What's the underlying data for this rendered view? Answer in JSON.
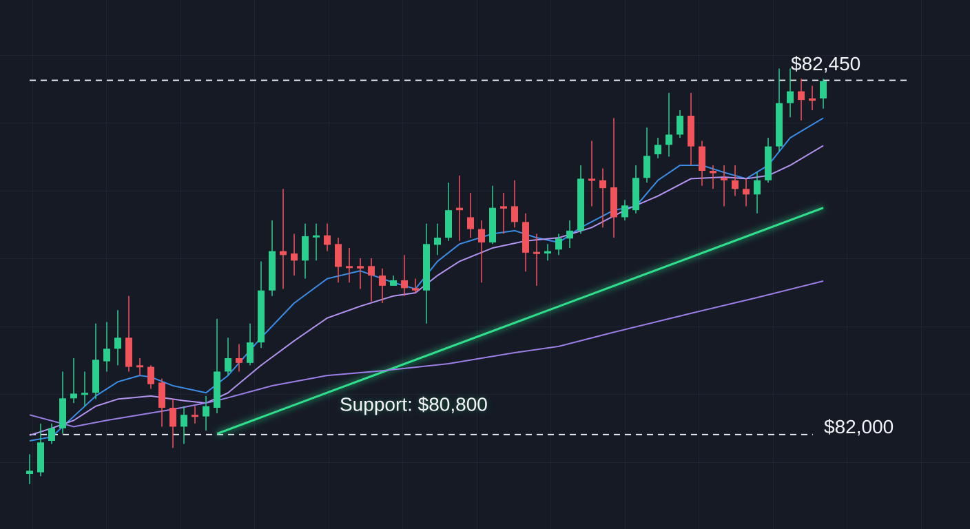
{
  "chart_data": {
    "type": "candlestick",
    "up_color": "#2bcf8e",
    "down_color": "#f2545b",
    "ylim": [
      81880,
      82552
    ],
    "open": [
      81950,
      81952,
      81992,
      82008,
      82046,
      82052,
      82053,
      82093,
      82109,
      82123,
      82088,
      82086,
      82066,
      82034,
      82010,
      82025,
      82023,
      82034,
      82080,
      82097,
      82091,
      82117,
      82183,
      82233,
      82230,
      82221,
      82252,
      82253,
      82242,
      82214,
      82214,
      82214,
      82202,
      82189,
      82196,
      82186,
      82183,
      82241,
      82250,
      82288,
      82276,
      82261,
      82244,
      82290,
      82290,
      82270,
      82232,
      82230,
      82235,
      82249,
      82259,
      82325,
      82323,
      82314,
      82276,
      82285,
      82326,
      82356,
      82368,
      82381,
      82405,
      82366,
      82335,
      82326,
      82323,
      82312,
      82305,
      82323,
      82366,
      82421,
      82436,
      82427,
      82427
    ],
    "high": [
      81975,
      82014,
      82014,
      82080,
      82097,
      82080,
      82141,
      82143,
      82158,
      82176,
      82097,
      82088,
      82071,
      82045,
      82036,
      82036,
      82049,
      82147,
      82123,
      82115,
      82141,
      82220,
      82272,
      82312,
      82255,
      82268,
      82268,
      82268,
      82250,
      82237,
      82224,
      82224,
      82211,
      82202,
      82228,
      82198,
      82268,
      82268,
      82320,
      82329,
      82307,
      82272,
      82316,
      82307,
      82323,
      82281,
      82255,
      82242,
      82255,
      82272,
      82342,
      82373,
      82338,
      82402,
      82298,
      82342,
      82390,
      82377,
      82434,
      82412,
      82434,
      82373,
      82342,
      82342,
      82342,
      82325,
      82333,
      82377,
      82465,
      82465,
      82452,
      82443,
      82452
    ],
    "low": [
      81937,
      81947,
      81988,
      82001,
      82040,
      82036,
      82045,
      82080,
      82088,
      82080,
      82075,
      82058,
      82010,
      81983,
      81988,
      82014,
      82005,
      82027,
      82075,
      82080,
      82088,
      82110,
      82176,
      82185,
      82202,
      82198,
      82221,
      82233,
      82193,
      82193,
      82185,
      82169,
      82167,
      82189,
      82176,
      82180,
      82141,
      82228,
      82246,
      82246,
      82250,
      82193,
      82242,
      82255,
      82263,
      82207,
      82189,
      82221,
      82228,
      82237,
      82255,
      82290,
      82263,
      82250,
      82272,
      82281,
      82320,
      82351,
      82353,
      82377,
      82342,
      82316,
      82312,
      82290,
      82303,
      82290,
      82281,
      82320,
      82360,
      82403,
      82399,
      82412,
      82414
    ],
    "close": [
      81954,
      81990,
      82008,
      82046,
      82052,
      82053,
      82095,
      82109,
      82123,
      82086,
      82087,
      82064,
      82034,
      82010,
      82025,
      82023,
      82036,
      82080,
      82097,
      82091,
      82117,
      82183,
      82233,
      82228,
      82221,
      82252,
      82253,
      82241,
      82213,
      82213,
      82211,
      82202,
      82189,
      82196,
      82186,
      82183,
      82242,
      82250,
      82285,
      82285,
      82261,
      82244,
      82288,
      82287,
      82270,
      82231,
      82230,
      82233,
      82249,
      82259,
      82325,
      82323,
      82313,
      82276,
      82291,
      82326,
      82354,
      82368,
      82381,
      82405,
      82366,
      82335,
      82332,
      82323,
      82312,
      82305,
      82323,
      82366,
      82421,
      82436,
      82425,
      82424,
      82449
    ],
    "series": [
      {
        "color": "#3a8ee8",
        "x": [
          0,
          2,
          4,
          6,
          8,
          10,
          11,
          13,
          16,
          18,
          21,
          24,
          27,
          30,
          33,
          35,
          37,
          39,
          42,
          44,
          46,
          48,
          50,
          53,
          55,
          57,
          59,
          61,
          63,
          65,
          67,
          69,
          72
        ],
        "values": [
          81992,
          81997,
          82023,
          82049,
          82067,
          82075,
          82073,
          82062,
          82053,
          82075,
          82123,
          82167,
          82198,
          82208,
          82193,
          82185,
          82220,
          82242,
          82255,
          82259,
          82250,
          82244,
          82263,
          82285,
          82290,
          82323,
          82342,
          82342,
          82333,
          82325,
          82342,
          82377,
          82402
        ]
      },
      {
        "color": "#b394f0",
        "x": [
          0,
          2,
          4,
          6,
          8,
          11,
          14,
          16,
          18,
          21,
          24,
          27,
          30,
          33,
          35,
          37,
          39,
          42,
          45,
          48,
          51,
          54,
          57,
          60,
          63,
          65,
          67,
          69,
          72
        ],
        "values": [
          81999,
          82008,
          82018,
          82036,
          82045,
          82049,
          82043,
          82040,
          82053,
          82088,
          82119,
          82148,
          82163,
          82176,
          82180,
          82202,
          82220,
          82237,
          82246,
          82250,
          82263,
          82285,
          82303,
          82325,
          82327,
          82325,
          82329,
          82342,
          82367
        ]
      },
      {
        "color": "#9b7fe6",
        "x": [
          0,
          4,
          7,
          13,
          17,
          22,
          27,
          32,
          38,
          44,
          48,
          53,
          60,
          66,
          72
        ],
        "values": [
          82025,
          82010,
          82018,
          82032,
          82043,
          82062,
          82075,
          82081,
          82090,
          82104,
          82112,
          82130,
          82154,
          82174,
          82195
        ]
      }
    ],
    "trendline": {
      "color": "#2fe08c",
      "x": [
        17,
        72
      ],
      "values": [
        82001,
        82288
      ]
    },
    "levels": [
      {
        "value": 82450,
        "label": "$82,450"
      },
      {
        "value": 82000,
        "label": "$82,000"
      }
    ],
    "annotation": "Support: $80,800"
  }
}
